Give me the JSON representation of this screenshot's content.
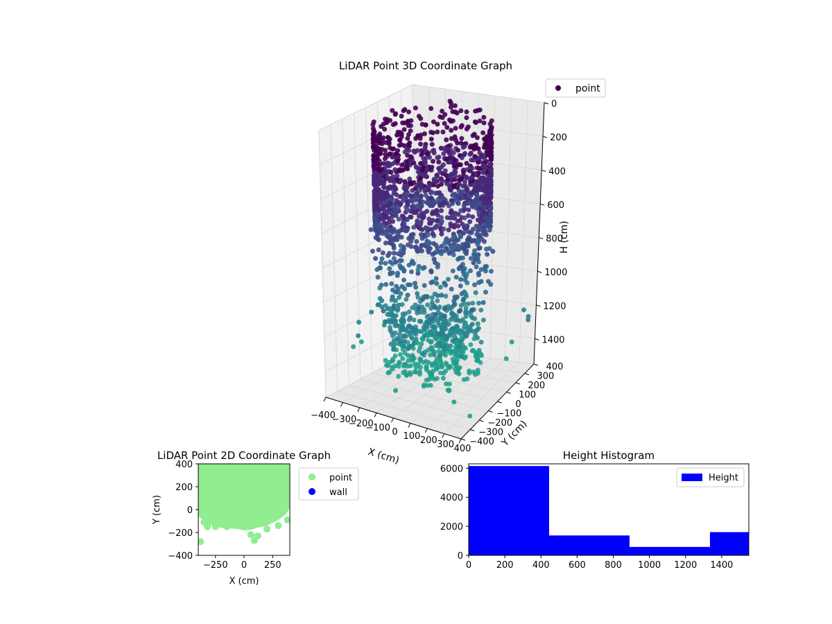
{
  "chart_data": [
    {
      "type": "scatter",
      "title": "LiDAR Point 3D Coordinate Graph",
      "xlabel": "X (cm)",
      "ylabel": "Y (cm)",
      "zlabel": "H (cm)",
      "xlim": [
        -400,
        400
      ],
      "ylim": [
        -400,
        400
      ],
      "zlim": [
        0,
        1550
      ],
      "z_inverted": true,
      "x_ticks": [
        "−400",
        "−300",
        "−200",
        "−100",
        "0",
        "100",
        "200",
        "300",
        "400"
      ],
      "y_ticks": [
        "−400",
        "−300",
        "−200",
        "−100",
        "0",
        "100",
        "200",
        "300",
        "400"
      ],
      "z_ticks": [
        "0",
        "200",
        "400",
        "600",
        "800",
        "1000",
        "1200",
        "1400"
      ],
      "z_tick_values": [
        0,
        200,
        400,
        600,
        800,
        1000,
        1200,
        1400
      ],
      "colormap": [
        "#440154",
        "#482878",
        "#3e4989",
        "#31688e",
        "#26828e",
        "#1f9e89"
      ],
      "legend": {
        "label": "point",
        "color": "#440154",
        "position": "top-right"
      },
      "grid": true,
      "series": [
        {
          "name": "point",
          "description_values": {
            "ring_radius": 300,
            "ring_height_range": [
              0,
              600
            ],
            "floor_height_range": [
              1050,
              1500
            ],
            "scattered_height_range": [
              600,
              1100
            ]
          }
        }
      ]
    },
    {
      "type": "scatter",
      "title": "LiDAR Point 2D Coordinate Graph",
      "xlabel": "X (cm)",
      "ylabel": "Y (cm)",
      "xlim": [
        -400,
        400
      ],
      "ylim": [
        -400,
        400
      ],
      "x_ticks": [
        -250,
        0,
        250
      ],
      "y_ticks": [
        -400,
        -200,
        0,
        200,
        400
      ],
      "x_tick_labels": [
        "−250",
        "0",
        "250"
      ],
      "y_tick_labels": [
        "−400",
        "−200",
        "0",
        "200",
        "400"
      ],
      "legend_position": "top-right",
      "series": [
        {
          "name": "point",
          "color": "#90ee90"
        },
        {
          "name": "wall",
          "color": "#0000ff"
        }
      ]
    },
    {
      "type": "bar",
      "title": "Height Histogram",
      "xlabel": "",
      "ylabel": "",
      "xlim": [
        0,
        1550
      ],
      "ylim": [
        0,
        6300
      ],
      "x_ticks": [
        0,
        200,
        400,
        600,
        800,
        1000,
        1200,
        1400
      ],
      "y_ticks": [
        0,
        2000,
        4000,
        6000
      ],
      "bins": [
        {
          "start": 0,
          "end": 445,
          "value": 6150
        },
        {
          "start": 445,
          "end": 890,
          "value": 1370
        },
        {
          "start": 890,
          "end": 1335,
          "value": 580
        },
        {
          "start": 1335,
          "end": 1550,
          "value": 1600
        }
      ],
      "series": [
        {
          "name": "Height",
          "color": "#0000ff"
        }
      ],
      "legend_position": "top-right"
    }
  ]
}
